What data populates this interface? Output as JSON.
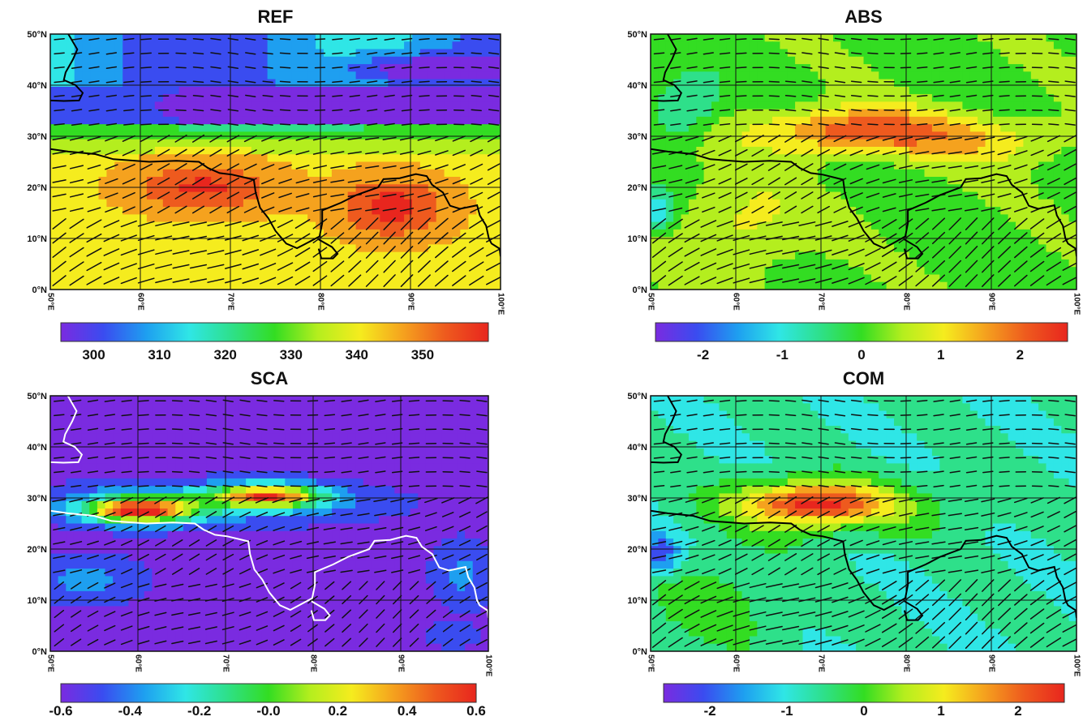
{
  "figure": {
    "lat_labels": [
      "50°N",
      "40°N",
      "30°N",
      "20°N",
      "10°N",
      "0°N"
    ],
    "lon_labels": [
      "50°E",
      "60°E",
      "70°E",
      "80°E",
      "90°E",
      "100°E"
    ],
    "panels": [
      {
        "id": "ref",
        "title": "REF",
        "colorbar_ticks": [
          "300",
          "310",
          "320",
          "330",
          "340",
          "350"
        ],
        "colorbar_range": [
          295,
          360
        ],
        "coastline_color": "#000000"
      },
      {
        "id": "abs",
        "title": "ABS",
        "colorbar_ticks": [
          "-2",
          "-1",
          "0",
          "1",
          "2"
        ],
        "colorbar_range": [
          -2.6,
          2.6
        ],
        "coastline_color": "#000000"
      },
      {
        "id": "sca",
        "title": "SCA",
        "colorbar_ticks": [
          "-0.6",
          "-0.4",
          "-0.2",
          "-0.0",
          "0.2",
          "0.4",
          "0.6"
        ],
        "colorbar_range": [
          -0.6,
          0.6
        ],
        "coastline_color": "#ffffff"
      },
      {
        "id": "com",
        "title": "COM",
        "colorbar_ticks": [
          "-2",
          "-1",
          "0",
          "1",
          "2"
        ],
        "colorbar_range": [
          -2.6,
          2.6
        ],
        "coastline_color": "#000000"
      }
    ],
    "colormap": [
      "#7a2be0",
      "#3a4cf0",
      "#1e9ff0",
      "#2fe6e6",
      "#2ee08a",
      "#33dd22",
      "#b4ee1e",
      "#f5ec1e",
      "#f5a21e",
      "#ee5a1e",
      "#e8261e"
    ]
  }
}
